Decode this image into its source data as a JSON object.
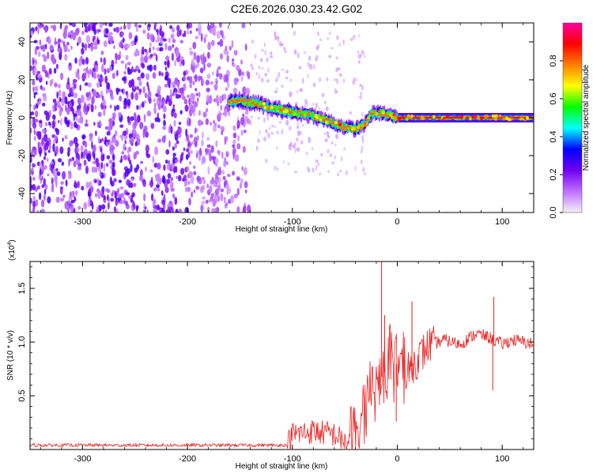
{
  "title": "C2E6.2026.030.23.42.G02",
  "chart_data": [
    {
      "type": "heatmap",
      "xlabel": "Height of straight line (km)",
      "ylabel": "Frequency (Hz)",
      "xlim": [
        -350,
        130
      ],
      "ylim": [
        -50,
        50
      ],
      "xticks": [
        -300,
        -200,
        -100,
        0,
        100
      ],
      "yticks": [
        -40,
        -20,
        0,
        20,
        40
      ],
      "colorbar": {
        "label": "Normalized spectral amplitude",
        "range": [
          0,
          1
        ],
        "ticks": [
          "0.0",
          "0.2",
          "0.4",
          "0.6",
          "0.8"
        ],
        "colors": [
          "#f2f2f2",
          "#c070ff",
          "#7000f0",
          "#0000ff",
          "#00ffff",
          "#00ff00",
          "#ffff00",
          "#ff8000",
          "#ff0000",
          "#ff00a0"
        ]
      },
      "ridge": [
        {
          "x": -150,
          "f": 9
        },
        {
          "x": -130,
          "f": 7
        },
        {
          "x": -120,
          "f": 5
        },
        {
          "x": -100,
          "f": 3
        },
        {
          "x": -80,
          "f": 1
        },
        {
          "x": -65,
          "f": -2
        },
        {
          "x": -50,
          "f": -5
        },
        {
          "x": -40,
          "f": -6
        },
        {
          "x": -30,
          "f": -3
        },
        {
          "x": -25,
          "f": 2
        },
        {
          "x": -15,
          "f": 2.5
        },
        {
          "x": -5,
          "f": 1
        },
        {
          "x": 0,
          "f": 0
        },
        {
          "x": 50,
          "f": 0
        },
        {
          "x": 100,
          "f": 0
        },
        {
          "x": 130,
          "f": 0
        }
      ]
    },
    {
      "type": "line",
      "xlabel": "Height of straight line (km)",
      "ylabel": "SNR (10 * v/v)",
      "multiplier": "(x10⁴)",
      "multiplier_base": "(x10",
      "multiplier_exp": "4",
      "xlim": [
        -350,
        130
      ],
      "ylim": [
        0,
        1.75
      ],
      "xticks": [
        -300,
        -200,
        -100,
        0,
        100
      ],
      "yticks": [
        "0.5",
        "1.0",
        "1.5"
      ],
      "line_color": "#e82020",
      "profile": [
        {
          "x": -350,
          "y": 0.04
        },
        {
          "x": -105,
          "y": 0.04
        },
        {
          "x": -100,
          "y": 0.14
        },
        {
          "x": -80,
          "y": 0.17
        },
        {
          "x": -60,
          "y": 0.14
        },
        {
          "x": -48,
          "y": 0.05
        },
        {
          "x": -40,
          "y": 0.12
        },
        {
          "x": -30,
          "y": 0.4
        },
        {
          "x": -20,
          "y": 0.6
        },
        {
          "x": -10,
          "y": 0.75
        },
        {
          "x": 0,
          "y": 0.8
        },
        {
          "x": 10,
          "y": 0.72
        },
        {
          "x": 20,
          "y": 0.85
        },
        {
          "x": 30,
          "y": 0.97
        },
        {
          "x": 45,
          "y": 1.02
        },
        {
          "x": 60,
          "y": 0.98
        },
        {
          "x": 75,
          "y": 1.08
        },
        {
          "x": 88,
          "y": 1.04
        },
        {
          "x": 100,
          "y": 0.98
        },
        {
          "x": 110,
          "y": 1.02
        },
        {
          "x": 130,
          "y": 0.98
        }
      ],
      "spikes": [
        {
          "x": -15,
          "y": 1.75
        },
        {
          "x": -12,
          "y": 1.25
        },
        {
          "x": 14,
          "y": 1.38
        },
        {
          "x": 92,
          "y": 1.42
        },
        {
          "x": 91,
          "y": 0.55
        },
        {
          "x": -1,
          "y": 0.26
        }
      ]
    }
  ]
}
